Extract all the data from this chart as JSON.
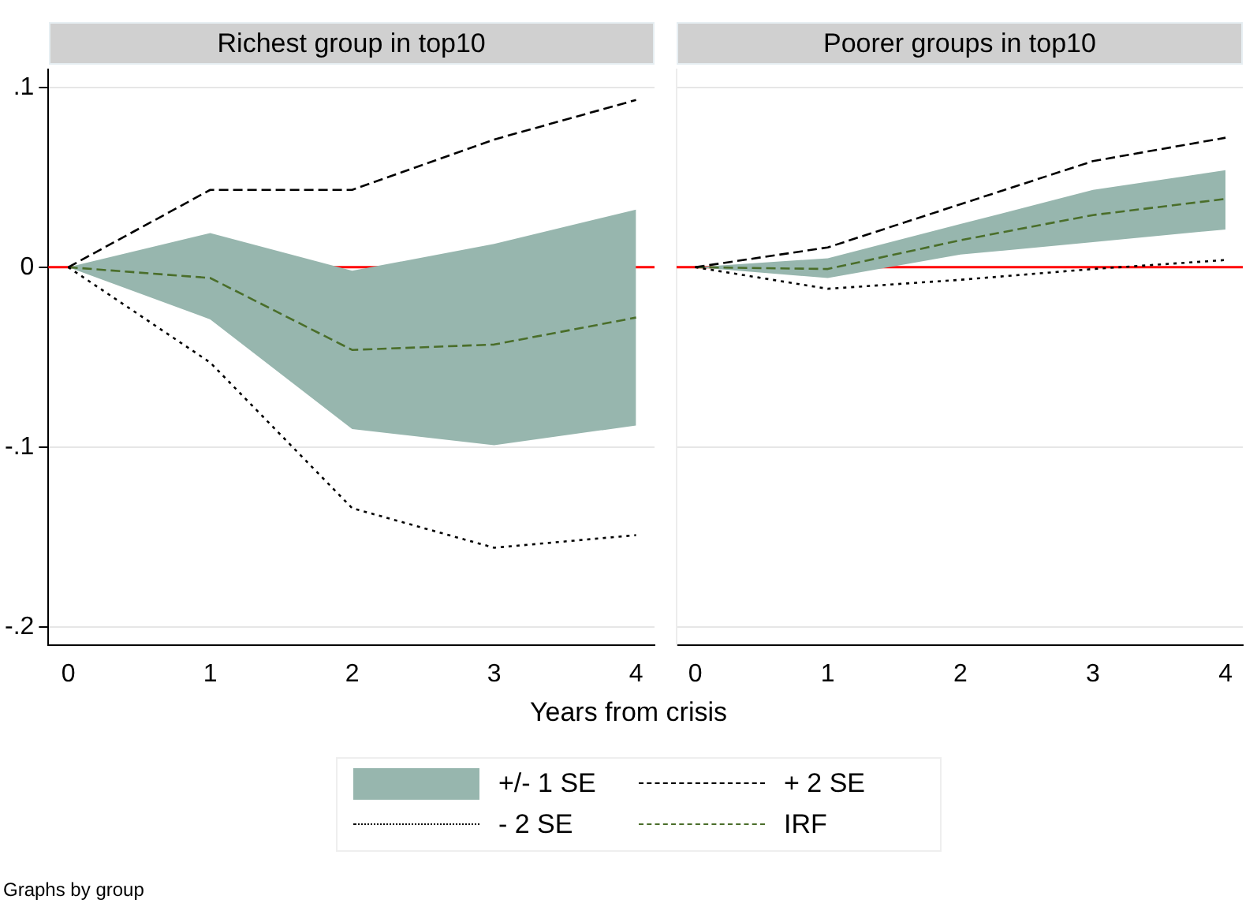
{
  "chart_data": [
    {
      "type": "line",
      "title": "Richest group in top10",
      "xlabel": "Years from crisis",
      "x": [
        0,
        1,
        2,
        3,
        4
      ],
      "xlim": [
        -0.14,
        4.13
      ],
      "xticks": [
        0,
        1,
        2,
        3,
        4
      ],
      "ylim": [
        -0.21,
        0.11
      ],
      "yticks": [
        {
          "value": -0.2,
          "label": "-.2"
        },
        {
          "value": -0.1,
          "label": "-.1"
        },
        {
          "value": 0,
          "label": "0"
        },
        {
          "value": 0.1,
          "label": ".1"
        }
      ],
      "grid": "y",
      "legend": "bottom",
      "marker": "none",
      "ref_lines": [
        {
          "axis": "y",
          "value": 0,
          "color": "#ff0000"
        }
      ],
      "annotations": [
        "Graphs by group"
      ],
      "series": [
        {
          "name": "+/- 1 SE",
          "type": "area",
          "color": "#97b6ae",
          "values": [
            null,
            null,
            null,
            null,
            null
          ],
          "lower": [
            0,
            -0.029,
            -0.09,
            -0.099,
            -0.088
          ],
          "upper": [
            0,
            0.019,
            -0.002,
            0.013,
            0.032
          ]
        },
        {
          "name": "+ 2 SE",
          "color": "#000000",
          "line_style": "dashed",
          "values": [
            0,
            0.043,
            0.043,
            0.071,
            0.093
          ]
        },
        {
          "name": "- 2 SE",
          "color": "#000000",
          "line_style": "dotted",
          "values": [
            0,
            -0.053,
            -0.134,
            -0.156,
            -0.149
          ]
        },
        {
          "name": "IRF",
          "color": "#4a6e2a",
          "line_style": "dashed",
          "values": [
            0,
            -0.006,
            -0.046,
            -0.043,
            -0.028
          ]
        }
      ]
    },
    {
      "type": "line",
      "title": "Poorer groups in top10",
      "x": [
        0,
        1,
        2,
        3,
        4
      ],
      "xlim": [
        -0.14,
        4.13
      ],
      "xticks": [
        0,
        1,
        2,
        3,
        4
      ],
      "ylim": [
        -0.21,
        0.11
      ],
      "yticks": [
        -0.2,
        -0.1,
        0,
        0.1
      ],
      "tick_labels": "x",
      "grid": "y",
      "marker": "none",
      "ref_lines": [
        {
          "axis": "y",
          "value": 0,
          "color": "#ff0000"
        }
      ],
      "series": [
        {
          "type": "area",
          "color": "#97b6ae",
          "values": [
            null,
            null,
            null,
            null,
            null
          ],
          "lower": [
            0,
            -0.006,
            0.007,
            0.014,
            0.021
          ],
          "upper": [
            0,
            0.005,
            0.024,
            0.043,
            0.054
          ]
        },
        {
          "color": "#000000",
          "line_style": "dashed",
          "values": [
            0,
            0.011,
            0.035,
            0.059,
            0.072
          ]
        },
        {
          "color": "#000000",
          "line_style": "dotted",
          "values": [
            0,
            -0.012,
            -0.007,
            -0.001,
            0.004
          ]
        },
        {
          "color": "#4a6e2a",
          "line_style": "dashed",
          "values": [
            0,
            -0.001,
            0.015,
            0.029,
            0.038
          ]
        }
      ]
    }
  ]
}
